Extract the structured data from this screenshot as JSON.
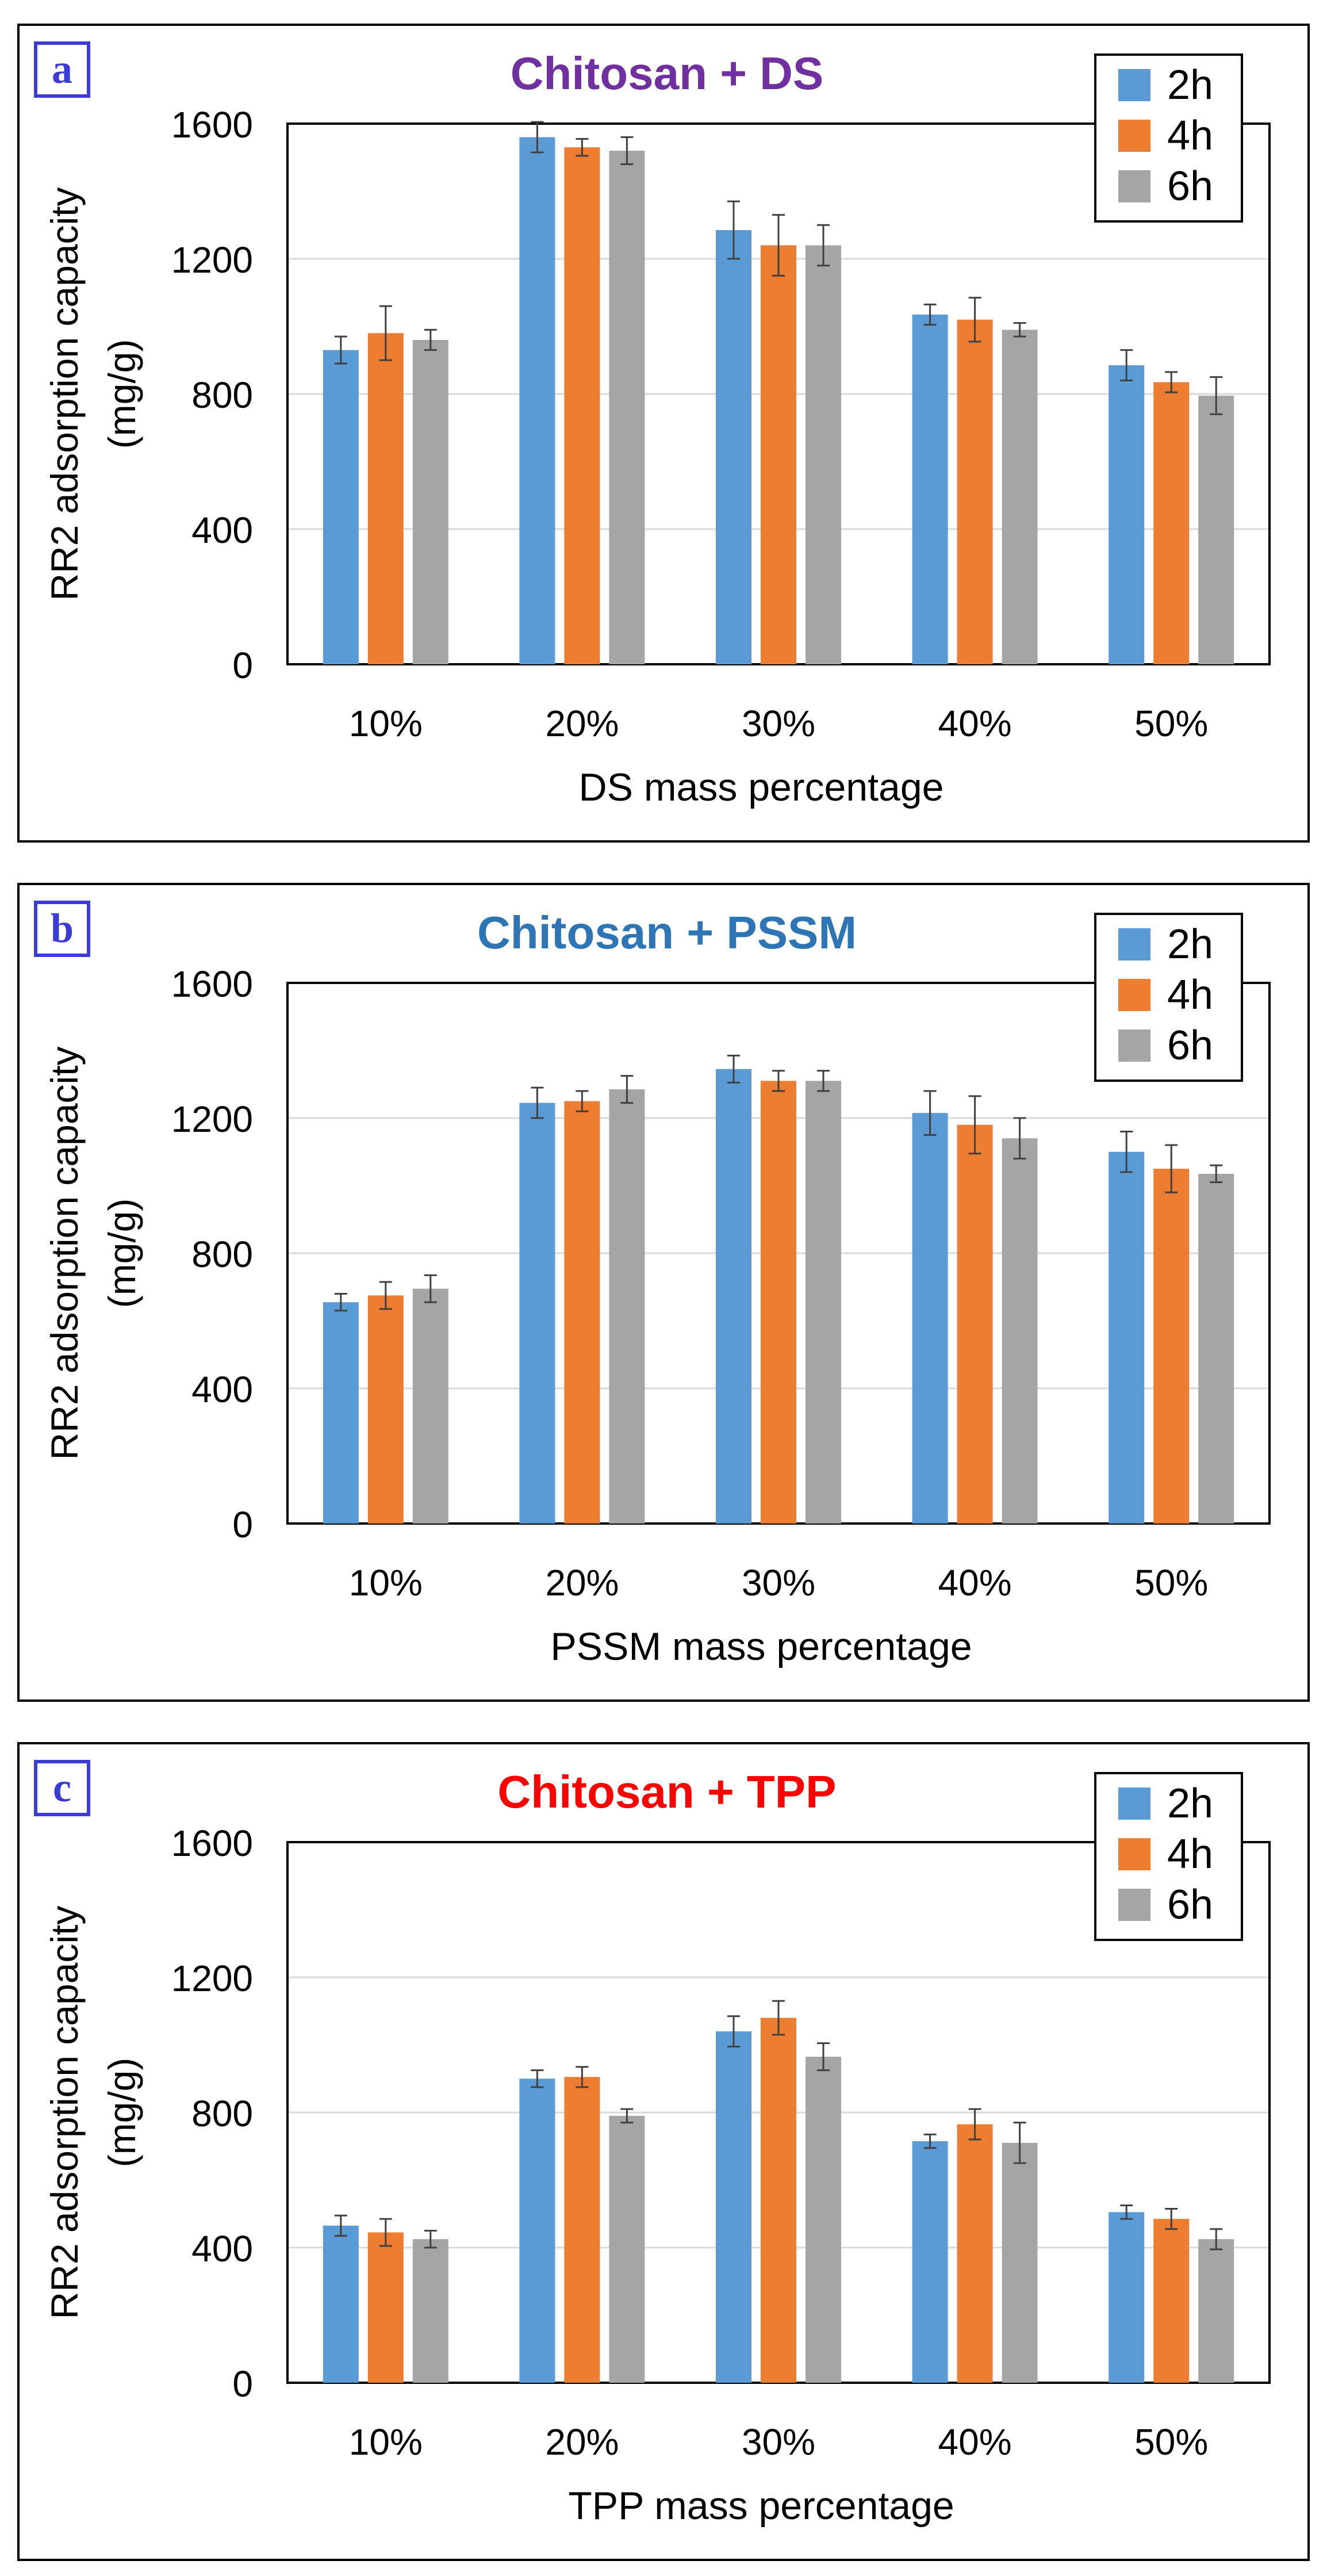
{
  "colors": {
    "2h": "#5b9bd5",
    "4h": "#ed7d31",
    "6h": "#a5a5a5",
    "grid": "#d9d9d9",
    "errbar": "#404040",
    "frame": "#000000"
  },
  "chart_data": [
    {
      "type": "bar",
      "panel_label": "a",
      "title": "Chitosan + DS",
      "title_color": "#7030a0",
      "xlabel": "DS mass percentage",
      "ylabel": "RR2 adsorption capacity",
      "ylabel_units": "(mg/g)",
      "ylim": [
        0,
        1600
      ],
      "yticks": [
        "0",
        "400",
        "800",
        "1200",
        "1600"
      ],
      "categories": [
        "10%",
        "20%",
        "30%",
        "40%",
        "50%"
      ],
      "legend_position": "top-right",
      "series": [
        {
          "name": "2h",
          "values": [
            930,
            1560,
            1285,
            1035,
            885
          ],
          "errors": [
            40,
            45,
            85,
            30,
            45
          ]
        },
        {
          "name": "4h",
          "values": [
            980,
            1530,
            1240,
            1020,
            835
          ],
          "errors": [
            80,
            25,
            90,
            65,
            30
          ]
        },
        {
          "name": "6h",
          "values": [
            960,
            1520,
            1240,
            990,
            795
          ],
          "errors": [
            30,
            40,
            60,
            20,
            55
          ]
        }
      ]
    },
    {
      "type": "bar",
      "panel_label": "b",
      "title": "Chitosan + PSSM",
      "title_color": "#2e75b6",
      "xlabel": "PSSM mass percentage",
      "ylabel": "RR2 adsorption capacity",
      "ylabel_units": "(mg/g)",
      "ylim": [
        0,
        1600
      ],
      "yticks": [
        "0",
        "400",
        "800",
        "1200",
        "1600"
      ],
      "categories": [
        "10%",
        "20%",
        "30%",
        "40%",
        "50%"
      ],
      "legend_position": "top-right",
      "series": [
        {
          "name": "2h",
          "values": [
            655,
            1245,
            1345,
            1215,
            1100
          ],
          "errors": [
            25,
            45,
            40,
            65,
            60
          ]
        },
        {
          "name": "4h",
          "values": [
            675,
            1250,
            1310,
            1180,
            1050
          ],
          "errors": [
            40,
            30,
            30,
            85,
            70
          ]
        },
        {
          "name": "6h",
          "values": [
            695,
            1285,
            1310,
            1140,
            1035
          ],
          "errors": [
            40,
            40,
            30,
            60,
            25
          ]
        }
      ]
    },
    {
      "type": "bar",
      "panel_label": "c",
      "title": "Chitosan + TPP",
      "title_color": "#ff0000",
      "xlabel": "TPP mass percentage",
      "ylabel": "RR2 adsorption capacity",
      "ylabel_units": "(mg/g)",
      "ylim": [
        0,
        1600
      ],
      "yticks": [
        "0",
        "400",
        "800",
        "1200",
        "1600"
      ],
      "categories": [
        "10%",
        "20%",
        "30%",
        "40%",
        "50%"
      ],
      "legend_position": "top-right",
      "series": [
        {
          "name": "2h",
          "values": [
            465,
            900,
            1040,
            715,
            505
          ],
          "errors": [
            30,
            25,
            45,
            20,
            20
          ]
        },
        {
          "name": "4h",
          "values": [
            445,
            905,
            1080,
            765,
            485
          ],
          "errors": [
            40,
            30,
            50,
            45,
            30
          ]
        },
        {
          "name": "6h",
          "values": [
            425,
            790,
            965,
            710,
            425
          ],
          "errors": [
            25,
            20,
            40,
            60,
            30
          ]
        }
      ]
    }
  ]
}
